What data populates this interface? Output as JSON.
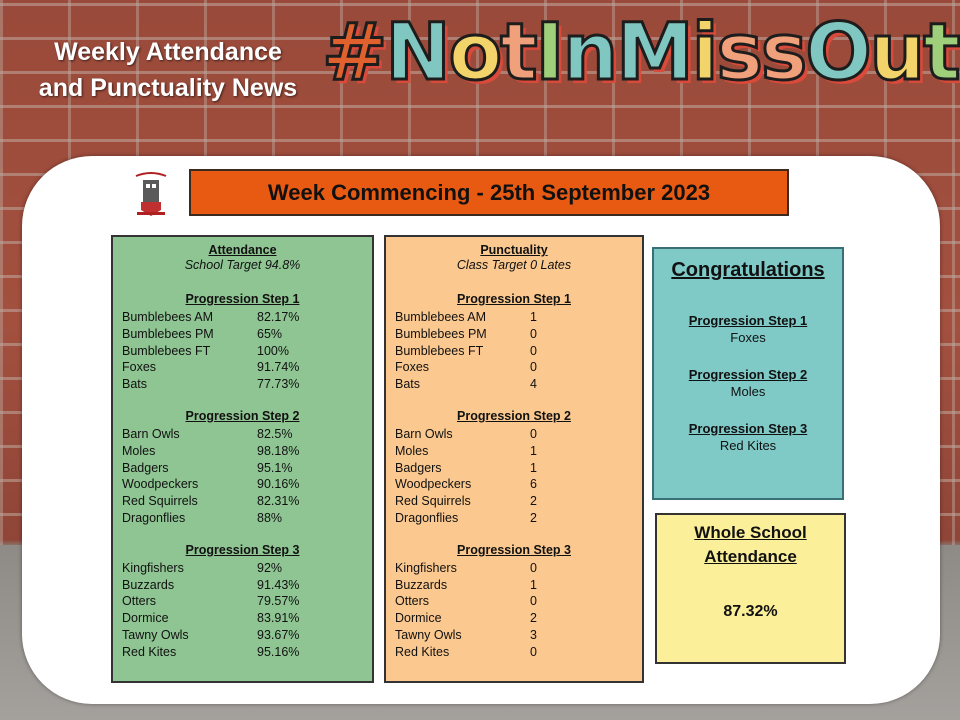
{
  "header": {
    "title_line1": "Weekly Attendance",
    "title_line2": "and Punctuality News",
    "hashtag": [
      "#",
      "N",
      "o",
      "t",
      "I",
      "n",
      "M",
      "i",
      "s",
      "s",
      "O",
      "u",
      "t"
    ]
  },
  "week_banner": "Week Commencing - 25th September 2023",
  "attendance": {
    "title": "Attendance",
    "subtitle": "School Target 94.8%",
    "steps": [
      {
        "heading": "Progression Step 1",
        "rows": [
          {
            "name": "Bumblebees AM",
            "value": "82.17%"
          },
          {
            "name": "Bumblebees PM",
            "value": "65%"
          },
          {
            "name": "Bumblebees FT",
            "value": "100%"
          },
          {
            "name": "Foxes",
            "value": "91.74%"
          },
          {
            "name": "Bats",
            "value": "77.73%"
          }
        ]
      },
      {
        "heading": "Progression Step 2",
        "rows": [
          {
            "name": "Barn Owls",
            "value": "82.5%"
          },
          {
            "name": "Moles",
            "value": "98.18%"
          },
          {
            "name": "Badgers",
            "value": "95.1%"
          },
          {
            "name": "Woodpeckers",
            "value": "90.16%"
          },
          {
            "name": "Red Squirrels",
            "value": "82.31%"
          },
          {
            "name": "Dragonflies",
            "value": "88%"
          }
        ]
      },
      {
        "heading": "Progression Step 3",
        "rows": [
          {
            "name": "Kingfishers",
            "value": "92%"
          },
          {
            "name": "Buzzards",
            "value": "91.43%"
          },
          {
            "name": "Otters",
            "value": "79.57%"
          },
          {
            "name": "Dormice",
            "value": "83.91%"
          },
          {
            "name": "Tawny Owls",
            "value": "93.67%"
          },
          {
            "name": "Red Kites",
            "value": "95.16%"
          }
        ]
      }
    ]
  },
  "punctuality": {
    "title": "Punctuality",
    "subtitle": "Class Target 0 Lates",
    "steps": [
      {
        "heading": "Progression Step 1",
        "rows": [
          {
            "name": "Bumblebees AM",
            "value": "1"
          },
          {
            "name": "Bumblebees PM",
            "value": "0"
          },
          {
            "name": "Bumblebees FT",
            "value": "0"
          },
          {
            "name": "Foxes",
            "value": "0"
          },
          {
            "name": "Bats",
            "value": "4"
          }
        ]
      },
      {
        "heading": "Progression Step 2",
        "rows": [
          {
            "name": "Barn Owls",
            "value": "0"
          },
          {
            "name": "Moles",
            "value": "1"
          },
          {
            "name": "Badgers",
            "value": "1"
          },
          {
            "name": "Woodpeckers",
            "value": "6"
          },
          {
            "name": "Red Squirrels",
            "value": "2"
          },
          {
            "name": "Dragonflies",
            "value": "2"
          }
        ]
      },
      {
        "heading": "Progression Step 3",
        "rows": [
          {
            "name": "Kingfishers",
            "value": "0"
          },
          {
            "name": "Buzzards",
            "value": "1"
          },
          {
            "name": "Otters",
            "value": "0"
          },
          {
            "name": "Dormice",
            "value": "2"
          },
          {
            "name": "Tawny Owls",
            "value": "3"
          },
          {
            "name": "Red Kites",
            "value": "0"
          }
        ]
      }
    ]
  },
  "congratulations": {
    "title": "Congratulations",
    "items": [
      {
        "heading": "Progression Step 1",
        "winner": "Foxes"
      },
      {
        "heading": "Progression Step 2",
        "winner": "Moles"
      },
      {
        "heading": "Progression Step 3",
        "winner": "Red Kites"
      }
    ]
  },
  "whole_school": {
    "title_line1": "Whole School",
    "title_line2": "Attendance",
    "value": "87.32%"
  },
  "colors": {
    "banner": "#e85a12",
    "attendance_panel": "#8fc593",
    "punctuality_panel": "#fbc98f",
    "congrats_panel": "#7fcac7",
    "whole_school_panel": "#fbef9a"
  }
}
